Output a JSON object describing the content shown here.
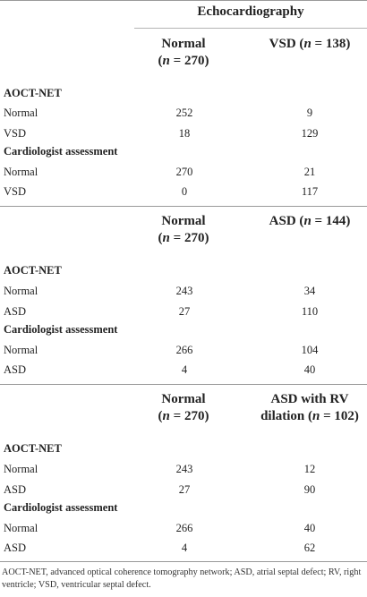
{
  "table": {
    "top_header": "Echocardiography",
    "blocks": [
      {
        "col1_header": [
          "Normal",
          "(n = 270)"
        ],
        "col2_header": [
          "VSD (n = 138)"
        ],
        "groups": [
          {
            "title": "AOCT-NET",
            "rows": [
              {
                "label": "Normal",
                "v1": "252",
                "v2": "9"
              },
              {
                "label": "VSD",
                "v1": "18",
                "v2": "129"
              }
            ]
          },
          {
            "title": "Cardiologist assessment",
            "rows": [
              {
                "label": "Normal",
                "v1": "270",
                "v2": "21"
              },
              {
                "label": "VSD",
                "v1": "0",
                "v2": "117"
              }
            ]
          }
        ]
      },
      {
        "col1_header": [
          "Normal",
          "(n = 270)"
        ],
        "col2_header": [
          "ASD (n = 144)"
        ],
        "groups": [
          {
            "title": "AOCT-NET",
            "rows": [
              {
                "label": "Normal",
                "v1": "243",
                "v2": "34"
              },
              {
                "label": "ASD",
                "v1": "27",
                "v2": "110"
              }
            ]
          },
          {
            "title": "Cardiologist assessment",
            "rows": [
              {
                "label": "Normal",
                "v1": "266",
                "v2": "104"
              },
              {
                "label": "ASD",
                "v1": "4",
                "v2": "40"
              }
            ]
          }
        ]
      },
      {
        "col1_header": [
          "Normal",
          "(n = 270)"
        ],
        "col2_header": [
          "ASD with RV",
          "dilation (n = 102)"
        ],
        "groups": [
          {
            "title": "AOCT-NET",
            "rows": [
              {
                "label": "Normal",
                "v1": "243",
                "v2": "12"
              },
              {
                "label": "ASD",
                "v1": "27",
                "v2": "90"
              }
            ]
          },
          {
            "title": "Cardiologist assessment",
            "rows": [
              {
                "label": "Normal",
                "v1": "266",
                "v2": "40"
              },
              {
                "label": "ASD",
                "v1": "4",
                "v2": "62"
              }
            ]
          }
        ]
      }
    ],
    "footnote": "AOCT-NET, advanced optical coherence tomography network; ASD, atrial septal defect; RV, right ventricle; VSD, ventricular septal defect."
  }
}
